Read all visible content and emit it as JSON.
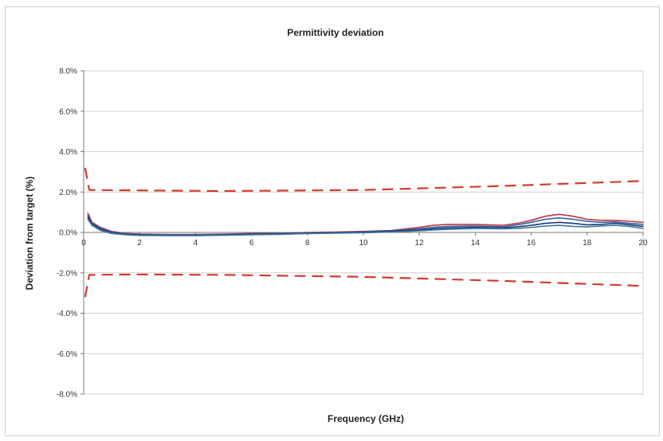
{
  "chart_data": {
    "type": "line",
    "title": "Permittivity deviation",
    "xlabel": "Frequency (GHz)",
    "ylabel": "Deviation from target (%)",
    "xlim": [
      0,
      20
    ],
    "ylim": [
      -8.0,
      8.0
    ],
    "x_ticks": [
      0,
      2,
      4,
      6,
      8,
      10,
      12,
      14,
      16,
      18,
      20
    ],
    "y_ticks": [
      -8.0,
      -6.0,
      -4.0,
      -2.0,
      0.0,
      2.0,
      4.0,
      6.0,
      8.0
    ],
    "y_tick_labels": [
      "-8.0%",
      "-6.0%",
      "-4.0%",
      "-2.0%",
      "0.0%",
      "2.0%",
      "4.0%",
      "6.0%",
      "8.0%"
    ],
    "grid": true,
    "legend": "none",
    "colors": {
      "limit": "#d23a32",
      "red_series": "#c6343b",
      "blue_series": "#2f5fa6",
      "navy_series": "#1f3a78",
      "teal_series": "#3d7c9a",
      "grid": "#d0d0d0",
      "axis": "#777777"
    },
    "series": [
      {
        "style": "dashed",
        "color": "#d23a32",
        "x": [
          0.05,
          0.2,
          2,
          5,
          10,
          15,
          20
        ],
        "y": [
          3.2,
          2.1,
          2.08,
          2.05,
          2.1,
          2.3,
          2.55
        ]
      },
      {
        "style": "dashed",
        "color": "#d23a32",
        "x": [
          0.05,
          0.2,
          2,
          5,
          10,
          15,
          20
        ],
        "y": [
          -3.2,
          -2.1,
          -2.08,
          -2.1,
          -2.2,
          -2.4,
          -2.65
        ]
      },
      {
        "style": "solid",
        "color": "#c6343b",
        "x": [
          0.15,
          0.3,
          0.6,
          1,
          1.5,
          2,
          3,
          4,
          5,
          6,
          7,
          8,
          9,
          10,
          11,
          12,
          12.5,
          13,
          14,
          15,
          15.5,
          16,
          16.5,
          17,
          17.5,
          18,
          18.5,
          19,
          19.5,
          20
        ],
        "y": [
          0.95,
          0.5,
          0.25,
          0.05,
          -0.05,
          -0.08,
          -0.1,
          -0.1,
          -0.08,
          -0.05,
          -0.05,
          0.0,
          0.02,
          0.05,
          0.1,
          0.25,
          0.35,
          0.4,
          0.4,
          0.35,
          0.45,
          0.6,
          0.8,
          0.9,
          0.8,
          0.65,
          0.6,
          0.6,
          0.55,
          0.5
        ]
      },
      {
        "style": "solid",
        "color": "#2f5fa6",
        "x": [
          0.15,
          0.3,
          0.6,
          1,
          1.5,
          2,
          3,
          4,
          5,
          6,
          7,
          8,
          9,
          10,
          11,
          12,
          12.5,
          13,
          14,
          15,
          15.5,
          16,
          16.5,
          17,
          17.5,
          18,
          18.5,
          19,
          19.5,
          20
        ],
        "y": [
          0.85,
          0.45,
          0.2,
          0.02,
          -0.07,
          -0.1,
          -0.12,
          -0.12,
          -0.1,
          -0.07,
          -0.06,
          -0.02,
          0.0,
          0.03,
          0.08,
          0.18,
          0.25,
          0.3,
          0.32,
          0.28,
          0.38,
          0.5,
          0.65,
          0.72,
          0.65,
          0.55,
          0.5,
          0.52,
          0.45,
          0.4
        ]
      },
      {
        "style": "solid",
        "color": "#1f3a78",
        "x": [
          0.15,
          0.3,
          0.6,
          1,
          1.5,
          2,
          3,
          4,
          5,
          6,
          7,
          8,
          9,
          10,
          11,
          12,
          12.5,
          13,
          14,
          15,
          15.5,
          16,
          16.5,
          17,
          17.5,
          18,
          18.5,
          19,
          19.5,
          20
        ],
        "y": [
          0.75,
          0.4,
          0.15,
          -0.02,
          -0.1,
          -0.12,
          -0.14,
          -0.14,
          -0.12,
          -0.09,
          -0.08,
          -0.04,
          -0.02,
          0.0,
          0.05,
          0.12,
          0.18,
          0.22,
          0.25,
          0.22,
          0.28,
          0.35,
          0.45,
          0.5,
          0.45,
          0.38,
          0.4,
          0.45,
          0.38,
          0.3
        ]
      },
      {
        "style": "solid",
        "color": "#3d7c9a",
        "x": [
          0.15,
          0.3,
          0.6,
          1,
          1.5,
          2,
          3,
          4,
          5,
          6,
          7,
          8,
          9,
          10,
          11,
          12,
          12.5,
          13,
          14,
          15,
          15.5,
          16,
          16.5,
          17,
          17.5,
          18,
          18.5,
          19,
          19.5,
          20
        ],
        "y": [
          0.65,
          0.35,
          0.1,
          -0.05,
          -0.12,
          -0.15,
          -0.16,
          -0.16,
          -0.14,
          -0.12,
          -0.1,
          -0.06,
          -0.04,
          -0.02,
          0.02,
          0.08,
          0.12,
          0.15,
          0.2,
          0.18,
          0.2,
          0.25,
          0.32,
          0.35,
          0.3,
          0.28,
          0.32,
          0.35,
          0.3,
          0.2
        ]
      }
    ]
  }
}
